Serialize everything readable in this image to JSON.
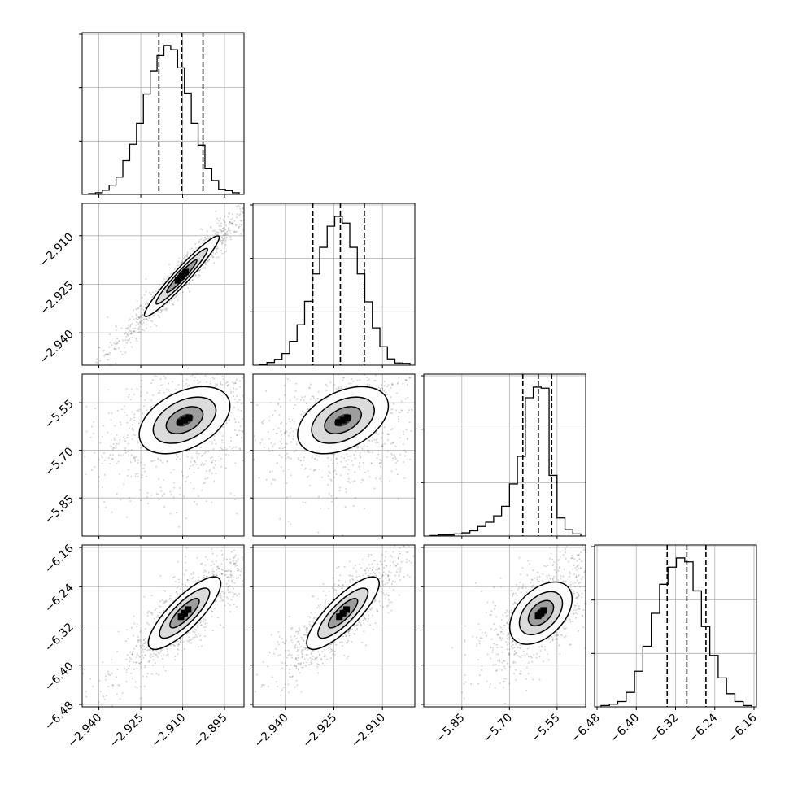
{
  "chart_data": {
    "type": "corner",
    "parameters": [
      {
        "range": [
          -2.946,
          -2.888
        ],
        "ticks": [
          -2.94,
          -2.925,
          -2.91,
          -2.895
        ],
        "tick_labels": [
          "−2.940",
          "−2.925",
          "−2.910",
          "−2.895"
        ],
        "quantiles": [
          -2.9185,
          -2.9103,
          -2.9027
        ]
      },
      {
        "range": [
          -2.95,
          -2.9
        ],
        "ticks": [
          -2.94,
          -2.925,
          -2.91
        ],
        "tick_labels": [
          "−2.940",
          "−2.925",
          "−2.910"
        ],
        "quantiles": [
          -2.9315,
          -2.923,
          -2.9156
        ]
      },
      {
        "range": [
          -5.97,
          -5.46
        ],
        "ticks": [
          -5.85,
          -5.7,
          -5.55
        ],
        "tick_labels": [
          "−5.85",
          "−5.70",
          "−5.55"
        ],
        "quantiles": [
          -5.658,
          -5.609,
          -5.567
        ]
      },
      {
        "range": [
          -6.485,
          -6.155
        ],
        "ticks": [
          -6.48,
          -6.4,
          -6.32,
          -6.24,
          -6.16
        ],
        "tick_labels": [
          "−6.48",
          "−6.40",
          "−6.32",
          "−6.24",
          "−6.16"
        ],
        "quantiles": [
          -6.337,
          -6.297,
          -6.258
        ]
      }
    ],
    "histograms": [
      {
        "counts": [
          0.2,
          0.4,
          1.0,
          2.2,
          4.1,
          8.0,
          11.9,
          16.9,
          23.8,
          29.3,
          32.9,
          35.3,
          34.3,
          30.0,
          24.0,
          16.9,
          11.7,
          6.1,
          3.3,
          1.2,
          0.9,
          0.4
        ]
      },
      {
        "counts": [
          0.2,
          0.6,
          1.3,
          2.6,
          5.3,
          9.0,
          14.2,
          20.3,
          26.2,
          30.9,
          33.1,
          31.6,
          26.2,
          20.3,
          14.1,
          8.3,
          4.1,
          1.4,
          0.5,
          0.4
        ]
      },
      {
        "counts": [
          0.05,
          0.1,
          0.1,
          0.2,
          0.3,
          0.5,
          0.9,
          1.3,
          1.9,
          2.8,
          4.9,
          7.5,
          13.0,
          14.0,
          13.9,
          5.7,
          1.7,
          0.6,
          0.2
        ]
      },
      {
        "counts": [
          0.1,
          0.2,
          0.4,
          1.1,
          2.7,
          4.6,
          7.1,
          9.3,
          10.6,
          11.3,
          11.0,
          8.8,
          6.1,
          3.9,
          2.2,
          1.0,
          0.4,
          0.1
        ]
      }
    ],
    "pairs": [
      {
        "row": 1,
        "col": 0,
        "center": [
          -2.9103,
          -2.9225
        ],
        "corr": 0.975
      },
      {
        "row": 2,
        "col": 0,
        "center": [
          -2.9093,
          -5.605
        ],
        "corr": 0.55
      },
      {
        "row": 2,
        "col": 1,
        "center": [
          -2.9222,
          -5.605
        ],
        "corr": 0.55
      },
      {
        "row": 3,
        "col": 0,
        "center": [
          -2.9093,
          -6.294
        ],
        "corr": 0.88
      },
      {
        "row": 3,
        "col": 1,
        "center": [
          -2.9222,
          -6.294
        ],
        "corr": 0.88
      },
      {
        "row": 3,
        "col": 2,
        "center": [
          -5.601,
          -6.294
        ],
        "corr": 0.72
      }
    ],
    "grid": true
  }
}
